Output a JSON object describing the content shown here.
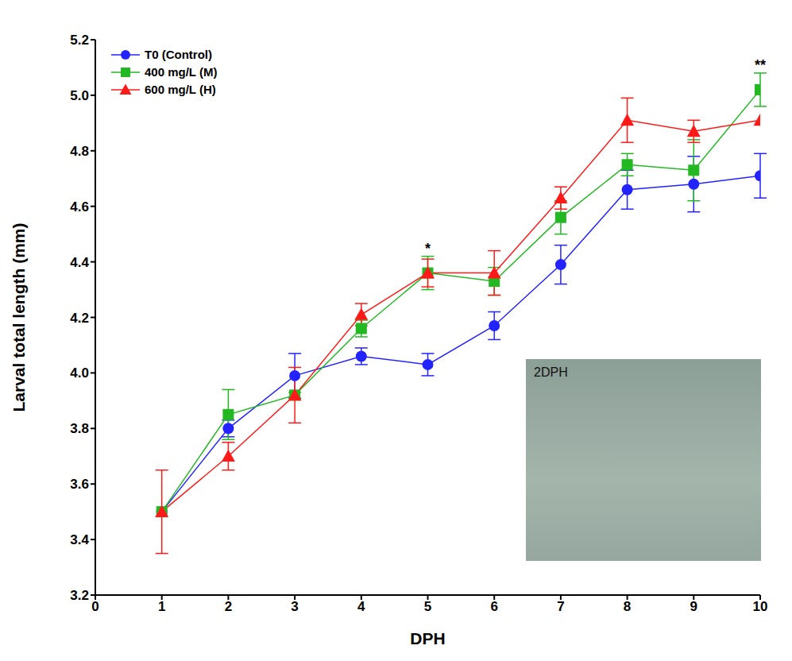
{
  "chart_data": {
    "type": "line",
    "x_label": "DPH",
    "y_label": "Larval total length (mm)",
    "x": [
      1,
      2,
      3,
      4,
      5,
      6,
      7,
      8,
      9,
      10
    ],
    "series": [
      {
        "name": "T0 (Control)",
        "color": "#2323ff",
        "marker": "circle",
        "values": [
          3.5,
          3.8,
          3.99,
          4.06,
          4.03,
          4.17,
          4.39,
          4.66,
          4.68,
          4.71
        ],
        "errors": [
          0,
          0.03,
          0.08,
          0.03,
          0.04,
          0.05,
          0.07,
          0.07,
          0.1,
          0.08
        ]
      },
      {
        "name": "400 mg/L (M)",
        "color": "#22b822",
        "marker": "square",
        "values": [
          3.5,
          3.85,
          3.92,
          4.16,
          4.36,
          4.33,
          4.56,
          4.75,
          4.73,
          5.02
        ],
        "errors": [
          0,
          0.09,
          0.01,
          0.03,
          0.06,
          0.05,
          0.06,
          0.04,
          0.11,
          0.06
        ]
      },
      {
        "name": "600 mg/L (H)",
        "color": "#ff1a1a",
        "marker": "triangle",
        "values": [
          3.5,
          3.7,
          3.92,
          4.21,
          4.36,
          4.36,
          4.63,
          4.91,
          4.87,
          4.91
        ],
        "errors": [
          0.15,
          0.05,
          0.1,
          0.04,
          0.05,
          0.08,
          0.04,
          0.08,
          0.04,
          0
        ]
      }
    ],
    "xlim": [
      0,
      10
    ],
    "xticks": [
      0,
      1,
      2,
      3,
      4,
      5,
      6,
      7,
      8,
      9,
      10
    ],
    "ylim": [
      3.2,
      5.2
    ],
    "yticks": [
      3.2,
      3.4,
      3.6,
      3.8,
      {
        "value": 4,
        "label": "4.0"
      },
      4.2,
      4.4,
      4.6,
      4.8,
      {
        "value": 5,
        "label": "5.0"
      },
      5.2
    ],
    "legend": "upper left",
    "grid": false,
    "annotations": [
      {
        "x": 5,
        "y": 4.45,
        "text": "*"
      },
      {
        "x": 10,
        "y": 5.11,
        "text": "**"
      }
    ],
    "inset_label": "2DPH"
  }
}
